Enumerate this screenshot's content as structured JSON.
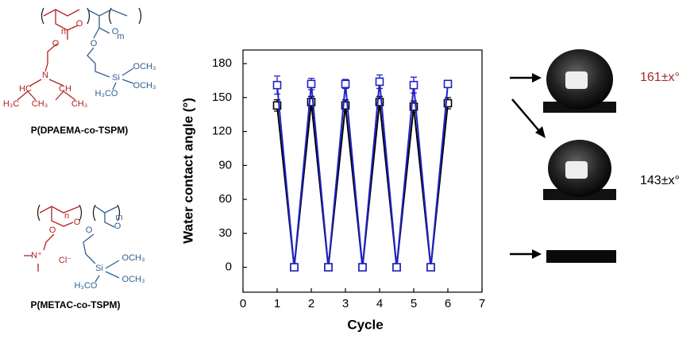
{
  "chart_data": {
    "type": "line",
    "xlabel": "Cycle",
    "ylabel": "Water contact angle (°)",
    "x": [
      1,
      1.5,
      2,
      2.5,
      3,
      3.5,
      4,
      4.5,
      5,
      5.5,
      6
    ],
    "series": [
      {
        "color": "#000000",
        "values": [
          143,
          0,
          146,
          0,
          143,
          0,
          146,
          0,
          142,
          0,
          145
        ],
        "errors": [
          5,
          0,
          5,
          0,
          5,
          0,
          5,
          0,
          5,
          0,
          5
        ]
      },
      {
        "color": "#2222c8",
        "values": [
          161,
          0,
          162,
          0,
          162,
          0,
          164,
          0,
          161,
          0,
          162
        ],
        "errors": [
          8,
          0,
          5,
          0,
          4,
          0,
          6,
          0,
          7,
          0,
          3
        ]
      }
    ],
    "xlim": [
      0,
      7
    ],
    "xticks": [
      0,
      1,
      2,
      3,
      4,
      5,
      6,
      7
    ],
    "ylim": [
      -22,
      192
    ],
    "yticks": [
      0,
      30,
      60,
      90,
      120,
      150,
      180
    ]
  },
  "structures": [
    {
      "name": "P(DPAEMA-co-TSPM)",
      "atoms": [
        "n",
        "m",
        "O",
        "O",
        "O",
        "O",
        "N",
        "HC",
        "CH",
        "H₃C",
        "CH₃",
        "CH₃",
        "Si",
        "OCH₃",
        "OCH₃",
        "H₃CO"
      ]
    },
    {
      "name": "P(METAC-co-TSPM)",
      "atoms": [
        "n",
        "m",
        "O",
        "O",
        "O",
        "O",
        "N⁺",
        "Cl⁻",
        "Si",
        "OCH₃",
        "OCH₃",
        "H₃CO"
      ]
    }
  ],
  "annotations": [
    {
      "text": "161±x°",
      "color": "#a52a2a"
    },
    {
      "text": "143±x°",
      "color": "#000000"
    }
  ]
}
